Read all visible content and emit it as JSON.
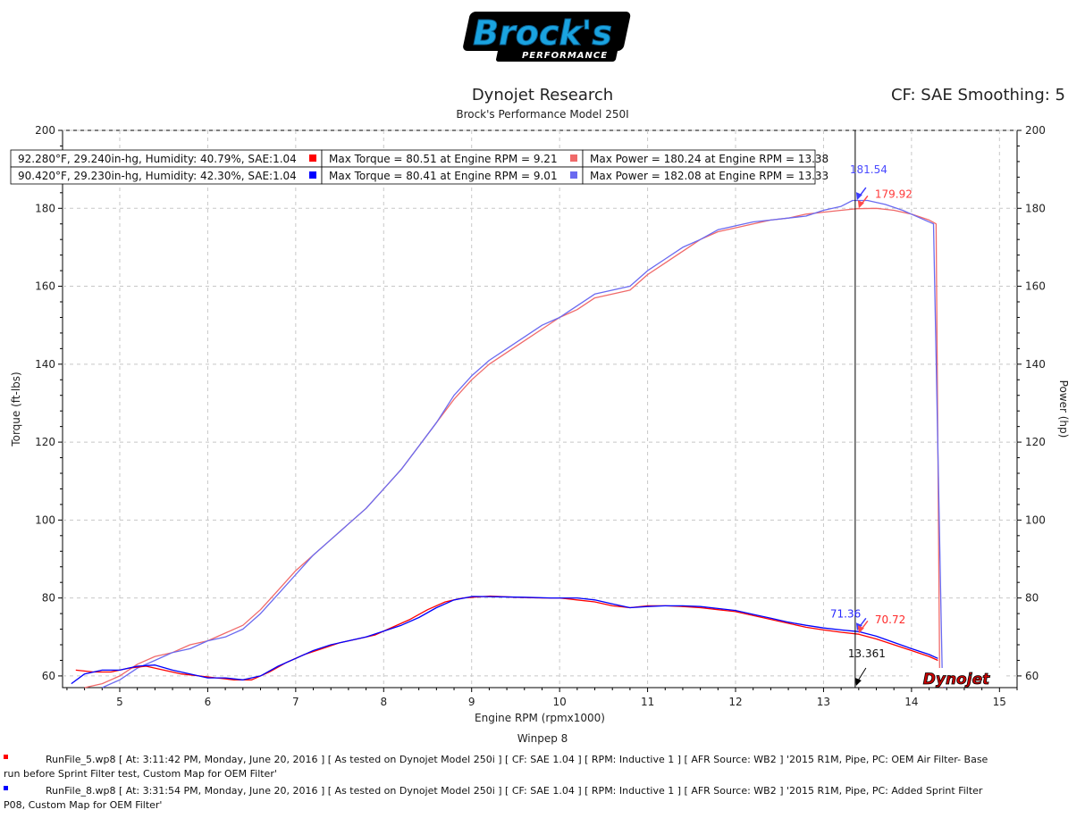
{
  "header": {
    "logo_main": "Brock's",
    "logo_sub": "PERFORMANCE",
    "title": "Dynojet Research",
    "subtitle": "Brock's Performance Model 250I",
    "cf_label": "CF: SAE Smoothing: 5",
    "software": "Winpep 8",
    "watermark": "Dynojet"
  },
  "legend": {
    "runs": [
      {
        "conditions": "92.280°F, 29.240in-hg, Humidity: 40.79%, SAE:1.04",
        "max_torque": "Max Torque = 80.51 at Engine RPM = 9.21",
        "max_power": "Max Power = 180.24 at Engine RPM = 13.38",
        "torque_color": "#ff0000",
        "power_color": "#f06a6a"
      },
      {
        "conditions": "90.420°F, 29.230in-hg, Humidity: 42.30%, SAE:1.04",
        "max_torque": "Max Torque = 80.41 at Engine RPM = 9.01",
        "max_power": "Max Power = 182.08 at Engine RPM = 13.33",
        "torque_color": "#0000ff",
        "power_color": "#6a6af0"
      }
    ]
  },
  "annotations": {
    "power_blue": "181.54",
    "power_red": "179.92",
    "torque_blue": "71.36",
    "torque_red": "70.72",
    "cursor_rpm": "13.361"
  },
  "footer": {
    "run1": "RunFile_5.wp8 [ At: 3:11:42 PM, Monday, June 20, 2016 ] [ As tested on Dynojet Model 250i ] [ CF: SAE 1.04 ] [ RPM: Inductive 1 ] [ AFR Source: WB2 ] '2015 R1M, Pipe, PC: OEM Air Filter- Base",
    "run1b": "run before Sprint Filter test, Custom Map for OEM Filter'",
    "run2": "RunFile_8.wp8 [ At: 3:31:54 PM, Monday, June 20, 2016 ] [ As tested on Dynojet Model 250i ] [ CF: SAE 1.04 ] [ RPM: Inductive 1 ] [ AFR Source: WB2 ] '2015 R1M, Pipe, PC: Added Sprint Filter",
    "run2b": "P08, Custom Map for OEM Filter'"
  },
  "chart_data": {
    "type": "line",
    "xlabel": "Engine RPM (rpmx1000)",
    "ylabel": "Torque (ft-lbs)",
    "ylabel_right": "Power (hp)",
    "xlim": [
      4.35,
      15.2
    ],
    "ylim": [
      57,
      200
    ],
    "x_ticks": [
      5,
      6,
      7,
      8,
      9,
      10,
      11,
      12,
      13,
      14,
      15
    ],
    "y_ticks": [
      60,
      80,
      100,
      120,
      140,
      160,
      180,
      200
    ],
    "grid": true,
    "cursor_x": 13.36,
    "series": [
      {
        "name": "Power",
        "run": 1,
        "color": "#f06a6a",
        "x": [
          4.6,
          4.8,
          5.0,
          5.2,
          5.4,
          5.6,
          5.8,
          6.0,
          6.2,
          6.4,
          6.6,
          6.8,
          7.0,
          7.2,
          7.4,
          7.6,
          7.8,
          8.0,
          8.2,
          8.4,
          8.6,
          8.8,
          9.0,
          9.2,
          9.4,
          9.6,
          9.8,
          10.0,
          10.2,
          10.4,
          10.6,
          10.8,
          11.0,
          11.2,
          11.4,
          11.6,
          11.8,
          12.0,
          12.2,
          12.4,
          12.6,
          12.8,
          13.0,
          13.2,
          13.38,
          13.6,
          13.8,
          14.0,
          14.2,
          14.28,
          14.32,
          14.35
        ],
        "values": [
          57,
          58,
          60,
          63,
          65,
          66,
          68,
          69,
          71,
          73,
          77,
          82,
          87,
          91,
          95,
          99,
          103,
          108,
          113,
          119,
          125,
          131,
          136,
          140,
          143,
          146,
          149,
          152,
          154,
          157,
          158,
          159,
          163,
          166,
          169,
          172,
          174,
          175,
          176,
          177,
          177.5,
          178.5,
          179,
          179.5,
          179.9,
          180,
          179.5,
          178.5,
          177,
          176,
          60,
          57
        ]
      },
      {
        "name": "Power",
        "run": 2,
        "color": "#6a6af0",
        "x": [
          4.8,
          5.0,
          5.2,
          5.4,
          5.6,
          5.8,
          6.0,
          6.2,
          6.4,
          6.6,
          6.8,
          7.0,
          7.2,
          7.4,
          7.6,
          7.8,
          8.0,
          8.2,
          8.4,
          8.6,
          8.8,
          9.0,
          9.2,
          9.4,
          9.6,
          9.8,
          10.0,
          10.2,
          10.4,
          10.6,
          10.8,
          11.0,
          11.2,
          11.4,
          11.6,
          11.8,
          12.0,
          12.2,
          12.4,
          12.6,
          12.8,
          13.0,
          13.2,
          13.33,
          13.5,
          13.7,
          13.9,
          14.1,
          14.25,
          14.35,
          14.38
        ],
        "values": [
          57,
          59,
          62,
          64,
          66,
          67,
          69,
          70,
          72,
          76,
          81,
          86,
          91,
          95,
          99,
          103,
          108,
          113,
          119,
          125,
          132,
          137,
          141,
          144,
          147,
          150,
          152,
          155,
          158,
          159,
          160,
          164,
          167,
          170,
          172,
          174.5,
          175.5,
          176.5,
          177,
          177.5,
          178,
          179.5,
          180.5,
          182,
          182,
          181,
          179.5,
          177.5,
          176,
          60,
          57
        ]
      },
      {
        "name": "Torque",
        "run": 1,
        "color": "#ff0000",
        "x": [
          4.5,
          4.7,
          4.9,
          5.1,
          5.3,
          5.5,
          5.7,
          5.9,
          6.1,
          6.3,
          6.5,
          6.7,
          6.9,
          7.1,
          7.3,
          7.5,
          7.7,
          7.9,
          8.1,
          8.3,
          8.5,
          8.7,
          8.9,
          9.21,
          9.5,
          9.8,
          10.0,
          10.2,
          10.4,
          10.6,
          10.8,
          11.0,
          11.2,
          11.4,
          11.6,
          11.8,
          12.0,
          12.2,
          12.4,
          12.6,
          12.8,
          13.0,
          13.2,
          13.4,
          13.6,
          13.8,
          14.0,
          14.2,
          14.3
        ],
        "values": [
          61.5,
          61,
          61,
          62,
          62.5,
          61.5,
          60.5,
          60,
          59.5,
          59,
          59,
          61,
          63.5,
          65.5,
          67,
          68.5,
          69.5,
          70.5,
          72.5,
          74.5,
          77,
          79,
          80,
          80.5,
          80.2,
          80,
          80,
          79.5,
          79,
          78,
          77.5,
          78,
          78,
          77.8,
          77.5,
          77,
          76.5,
          75.5,
          74.5,
          73.5,
          72.5,
          71.8,
          71.2,
          70.7,
          69.5,
          68,
          66.5,
          65,
          64
        ]
      },
      {
        "name": "Torque",
        "run": 2,
        "color": "#0000ff",
        "x": [
          4.45,
          4.6,
          4.8,
          5.0,
          5.2,
          5.4,
          5.6,
          5.8,
          6.0,
          6.2,
          6.4,
          6.6,
          6.8,
          7.0,
          7.2,
          7.4,
          7.6,
          7.8,
          8.0,
          8.2,
          8.4,
          8.6,
          8.8,
          9.01,
          9.3,
          9.6,
          9.9,
          10.2,
          10.4,
          10.6,
          10.8,
          11.0,
          11.2,
          11.4,
          11.6,
          11.8,
          12.0,
          12.2,
          12.4,
          12.6,
          12.8,
          13.0,
          13.2,
          13.4,
          13.6,
          13.8,
          14.0,
          14.2,
          14.3
        ],
        "values": [
          58,
          60.5,
          61.5,
          61.5,
          62.5,
          62.8,
          61.5,
          60.5,
          59.5,
          59.5,
          59,
          60,
          62.5,
          64.5,
          66.5,
          68,
          69,
          70,
          71.5,
          73,
          75,
          77.5,
          79.5,
          80.4,
          80.3,
          80.2,
          80,
          80,
          79.5,
          78.5,
          77.5,
          77.8,
          78,
          78,
          77.8,
          77.3,
          76.8,
          75.8,
          74.8,
          73.8,
          73,
          72.3,
          71.8,
          71.36,
          70.2,
          68.6,
          67,
          65.5,
          64.5
        ]
      }
    ]
  }
}
